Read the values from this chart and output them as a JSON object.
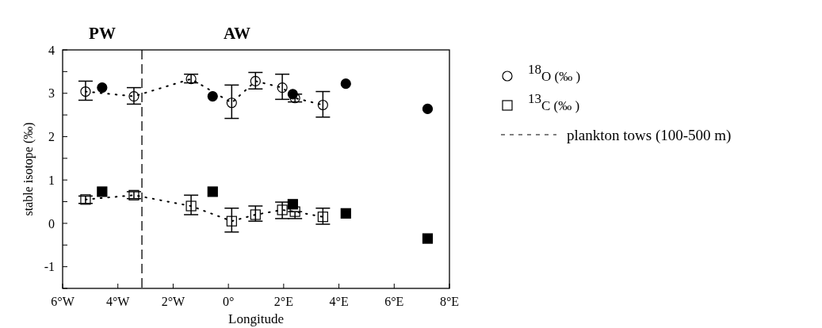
{
  "chart_data": {
    "type": "scatter",
    "xlabel": "Longitude",
    "ylabel": "stable isotope (‰)",
    "xlim": [
      -6,
      8
    ],
    "xticks": [
      {
        "value": -6,
        "label": "6°W"
      },
      {
        "value": -4,
        "label": "4°W"
      },
      {
        "value": -2,
        "label": "2°W"
      },
      {
        "value": 0,
        "label": "0°"
      },
      {
        "value": 2,
        "label": "2°E"
      },
      {
        "value": 4,
        "label": "4°E"
      },
      {
        "value": 6,
        "label": "6°E"
      },
      {
        "value": 8,
        "label": "8°E"
      }
    ],
    "ylim": [
      -1.5,
      4
    ],
    "yticks": [
      {
        "value": -1.5,
        "label": null
      },
      -1,
      {
        "value": -0.5,
        "label": null
      },
      0,
      {
        "value": 0.5,
        "label": null
      },
      1,
      {
        "value": 1.5,
        "label": null
      },
      2,
      {
        "value": 2.5,
        "label": null
      },
      3,
      {
        "value": 3.5,
        "label": null
      },
      4
    ],
    "grid": false,
    "legend": "right",
    "ref_lines": [
      {
        "axis": "x",
        "value": -3.13,
        "line_style": "dashed",
        "color": "#000000"
      }
    ],
    "annotations": [
      "PW",
      "AW"
    ],
    "series": [
      {
        "name": "$^{18}$O (‰ )",
        "marker": "circle",
        "color": "#000000",
        "x": [
          -5.17,
          -3.42,
          -1.35,
          0.12,
          0.98,
          1.95,
          2.41,
          3.42
        ],
        "values": [
          3.04,
          2.93,
          3.33,
          2.78,
          3.28,
          3.13,
          2.89,
          2.73
        ],
        "errors": [
          [
            2.84,
            3.28
          ],
          [
            2.75,
            3.13
          ],
          [
            3.24,
            3.44
          ],
          [
            2.42,
            3.19
          ],
          [
            3.1,
            3.48
          ],
          [
            2.86,
            3.44
          ],
          [
            2.8,
            2.98
          ],
          [
            2.45,
            3.04
          ]
        ]
      },
      {
        "name": "$^{13}$C (‰ )",
        "marker": "square",
        "color": "#000000",
        "x": [
          -5.17,
          -3.42,
          -1.35,
          0.12,
          0.98,
          1.95,
          2.41,
          3.42
        ],
        "values": [
          0.55,
          0.65,
          0.4,
          0.05,
          0.2,
          0.31,
          0.27,
          0.15
        ],
        "errors": [
          [
            0.46,
            0.63
          ],
          [
            0.57,
            0.73
          ],
          [
            0.2,
            0.65
          ],
          [
            -0.2,
            0.35
          ],
          [
            0.05,
            0.4
          ],
          [
            0.11,
            0.49
          ],
          [
            0.11,
            0.27
          ],
          [
            -0.02,
            0.35
          ]
        ]
      },
      {
        "name": "plankton tows (100-500 m)",
        "type": "line",
        "line_style": "dotted",
        "marker": "none",
        "color": "#000000",
        "x": [
          -5.17,
          -3.42,
          -1.35,
          0.12,
          0.98,
          1.95,
          2.41,
          3.42
        ],
        "values": [
          3.04,
          2.93,
          3.33,
          2.78,
          3.28,
          3.13,
          2.89,
          2.73
        ]
      },
      {
        "type": "line",
        "line_style": "dotted",
        "marker": "none",
        "color": "#000000",
        "x": [
          -5.17,
          -3.42,
          -1.35,
          0.12,
          0.98,
          1.95,
          2.41,
          3.42
        ],
        "values": [
          0.55,
          0.65,
          0.4,
          0.05,
          0.2,
          0.31,
          0.27,
          0.15
        ]
      },
      {
        "marker": "circle",
        "color": "#000000",
        "x": [
          -4.57,
          -0.57,
          2.33,
          4.25,
          7.21
        ],
        "values": [
          3.13,
          2.93,
          2.98,
          3.22,
          2.64
        ]
      },
      {
        "marker": "square",
        "color": "#000000",
        "x": [
          -4.57,
          -0.57,
          2.33,
          4.25,
          7.21
        ],
        "values": [
          0.73,
          0.73,
          0.44,
          0.23,
          -0.35
        ]
      }
    ]
  }
}
